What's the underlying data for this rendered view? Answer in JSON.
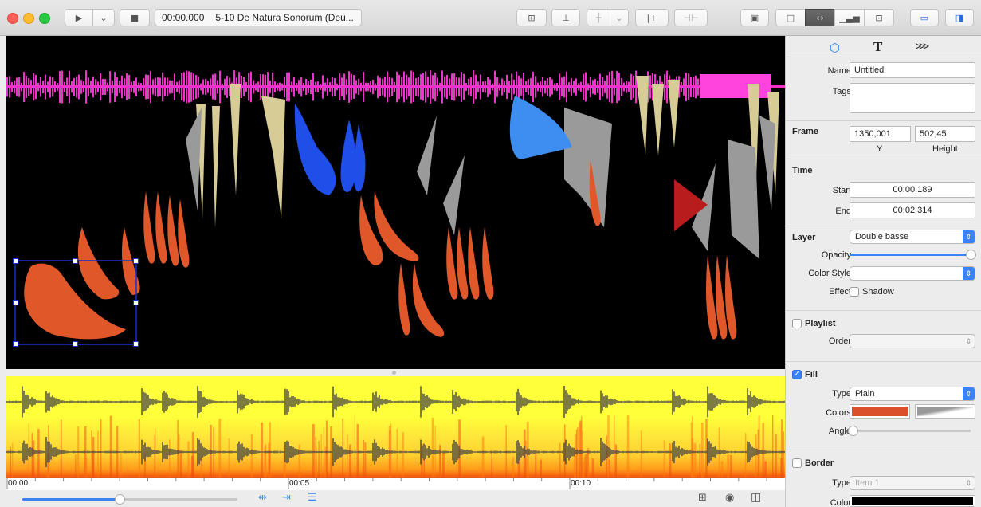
{
  "window": {
    "time_display": "00:00.000",
    "file_name": "5-10 De Natura Sonorum (Deu..."
  },
  "colors": {
    "waveform_pink": "#ee33cc",
    "shape_orange": "#e0582a",
    "shape_blue": "#3d8ef0",
    "shape_darkblue": "#1f4ee8",
    "shape_beige": "#d8cc96",
    "shape_gray": "#9a9a9a",
    "shape_red": "#b81c1c",
    "selection": "#1a2fd0",
    "accent": "#3b82f6"
  },
  "timeline": {
    "ticks": [
      "00:00",
      "00:05",
      "00:10"
    ]
  },
  "inspector": {
    "tabs": [
      "shapes-icon",
      "text-icon",
      "effects-icon"
    ],
    "text_tab_glyph": "T",
    "name_label": "Name",
    "name_value": "Untitled",
    "tags_label": "Tags",
    "tags_value": "",
    "frame": {
      "title": "Frame",
      "y_value": "1350,001",
      "height_value": "502,45",
      "y_label": "Y",
      "height_label": "Height"
    },
    "time": {
      "title": "Time",
      "start_label": "Start",
      "start_value": "00:00.189",
      "end_label": "End",
      "end_value": "00:02.314"
    },
    "layer": {
      "title": "Layer",
      "value": "Double basse",
      "opacity_label": "Opacity",
      "opacity": 1.0,
      "color_style_label": "Color Style",
      "color_style_value": "",
      "effect_label": "Effect",
      "shadow_label": "Shadow"
    },
    "playlist": {
      "title": "Playlist",
      "order_label": "Order",
      "order_value": ""
    },
    "fill": {
      "title": "Fill",
      "type_label": "Type",
      "type_value": "Plain",
      "colors_label": "Colors",
      "angle_label": "Angle",
      "angle": 0.0,
      "fill_color": "#d9502a"
    },
    "border": {
      "title": "Border",
      "type_label": "Type",
      "type_value": "Item 1",
      "color_label": "Color",
      "border_color": "#000000"
    }
  },
  "transport": {
    "zoom": 0.45
  }
}
